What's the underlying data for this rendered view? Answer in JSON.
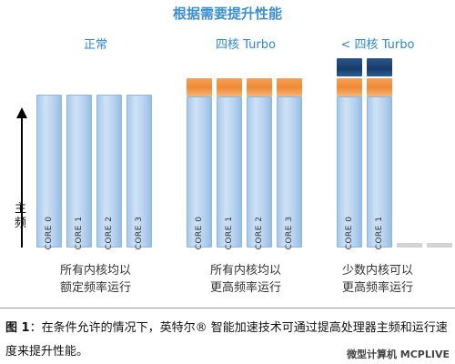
{
  "title": "根据需要提升性能",
  "axis_label": "主频",
  "groups": [
    {
      "label": "正常",
      "caption_line1": "所有内核均以",
      "caption_line2": "额定频率运行",
      "cores": [
        "CORE 0",
        "CORE 1",
        "CORE 2",
        "CORE 3"
      ]
    },
    {
      "label": "四核 Turbo",
      "caption_line1": "所有内核均以",
      "caption_line2": "更高频率运行",
      "cores": [
        "CORE 0",
        "CORE 1",
        "CORE 2",
        "CORE 3"
      ]
    },
    {
      "label": "< 四核 Turbo",
      "caption_line1": "少数内核可以",
      "caption_line2": "更高频率运行",
      "cores": [
        "CORE 0",
        "CORE 1"
      ]
    }
  ],
  "figure_caption": {
    "prefix": "图 1",
    "text": "：在条件允许的情况下，英特尔® 智能加速技术可通过提高处理器主频和运行速度来提升性能。"
  },
  "brand": "微型计算机 MCPLIVE"
}
